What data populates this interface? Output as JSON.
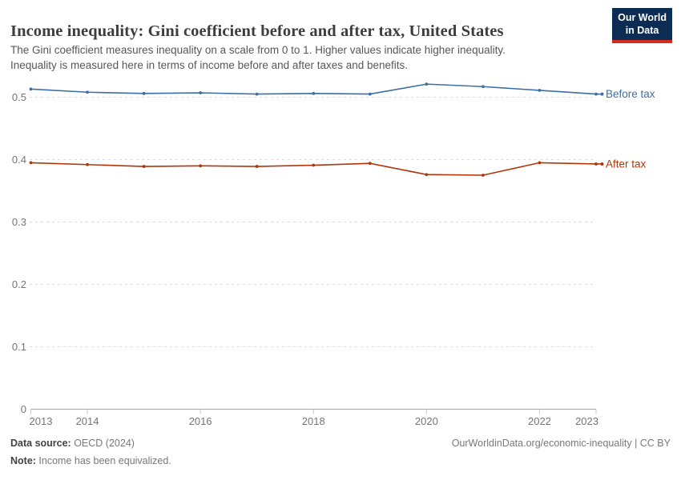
{
  "header": {
    "title": "Income inequality: Gini coefficient before and after tax, United States",
    "subtitle_line1": "The Gini coefficient measures inequality on a scale from 0 to 1. Higher values indicate higher inequality.",
    "subtitle_line2": "Inequality is measured here in terms of income before and after taxes and benefits.",
    "logo": {
      "line1": "Our World",
      "line2": "in Data"
    }
  },
  "chart_data": {
    "type": "line",
    "x": [
      2013,
      2014,
      2015,
      2016,
      2017,
      2018,
      2019,
      2020,
      2021,
      2022,
      2023
    ],
    "series": [
      {
        "name": "Before tax",
        "color": "#3C6FA6",
        "values": [
          0.513,
          0.508,
          0.506,
          0.507,
          0.505,
          0.506,
          0.505,
          0.521,
          0.517,
          0.511,
          0.505
        ]
      },
      {
        "name": "After tax",
        "color": "#B13507",
        "values": [
          0.395,
          0.392,
          0.389,
          0.39,
          0.389,
          0.391,
          0.394,
          0.376,
          0.375,
          0.395,
          0.393
        ]
      }
    ],
    "title": "Income inequality: Gini coefficient before and after tax, United States",
    "xlabel": "",
    "ylabel": "",
    "ylim": [
      0,
      0.55
    ],
    "yticks": [
      0,
      0.1,
      0.2,
      0.3,
      0.4,
      0.5
    ],
    "xticks": [
      2013,
      2014,
      2016,
      2018,
      2020,
      2022,
      2023
    ],
    "grid": "horizontal-dashed",
    "legend_position": "right-of-line-labels",
    "colors": {
      "gridline": "#dcdcdc",
      "axis": "#a3a3a3",
      "tick_text": "#757575"
    }
  },
  "footer": {
    "source_label": "Data source:",
    "source_value": " OECD (2024)",
    "note_label": "Note:",
    "note_value": " Income has been equivalized.",
    "rights": "OurWorldinData.org/economic-inequality | CC BY"
  }
}
